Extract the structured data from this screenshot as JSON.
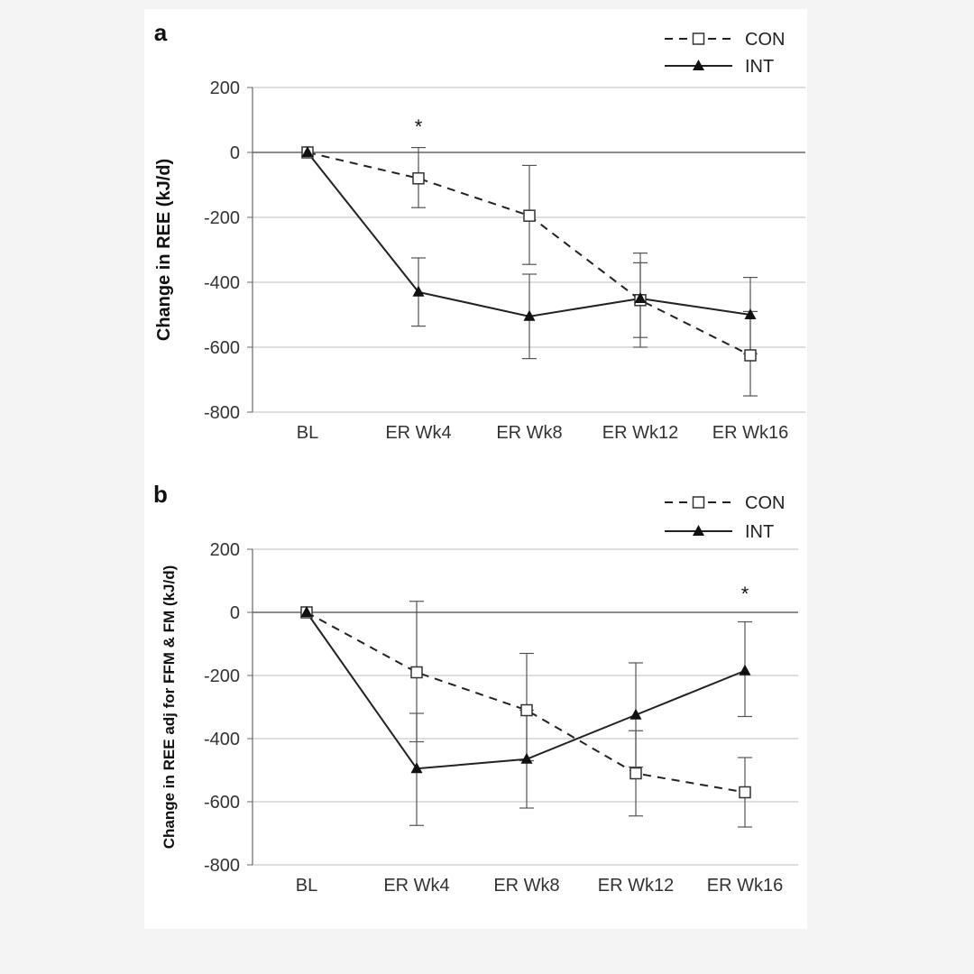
{
  "chart_data": [
    {
      "type": "line",
      "panel_label": "a",
      "ylabel": "Change in REE (kJ/d)",
      "categories": [
        "BL",
        "ER Wk4",
        "ER Wk8",
        "ER Wk12",
        "ER Wk16"
      ],
      "ylim": [
        -800,
        200
      ],
      "yticks": [
        200,
        0,
        -200,
        -400,
        -600,
        -800
      ],
      "grid": true,
      "legend_position": "top-right",
      "series": [
        {
          "name": "CON",
          "style": "dashed",
          "marker": "open-square",
          "values": [
            0,
            -80,
            -195,
            -455,
            -625
          ],
          "error_low": [
            0,
            -170,
            -345,
            -570,
            -750
          ],
          "error_high": [
            0,
            15,
            -40,
            -340,
            -490
          ]
        },
        {
          "name": "INT",
          "style": "solid",
          "marker": "filled-triangle",
          "values": [
            0,
            -430,
            -505,
            -450,
            -500
          ],
          "error_low": [
            0,
            -535,
            -635,
            -600,
            -620
          ],
          "error_high": [
            0,
            -325,
            -375,
            -310,
            -385
          ]
        }
      ],
      "annotations": [
        {
          "text": "*",
          "category": "ER Wk4",
          "y": 80
        }
      ]
    },
    {
      "type": "line",
      "panel_label": "b",
      "ylabel": "Change in REE adj for FFM & FM (kJ/d)",
      "categories": [
        "BL",
        "ER Wk4",
        "ER Wk8",
        "ER Wk12",
        "ER Wk16"
      ],
      "ylim": [
        -800,
        200
      ],
      "yticks": [
        200,
        0,
        -200,
        -400,
        -600,
        -800
      ],
      "grid": true,
      "legend_position": "top-right",
      "series": [
        {
          "name": "CON",
          "style": "dashed",
          "marker": "open-square",
          "values": [
            0,
            -190,
            -310,
            -510,
            -570
          ],
          "error_low": [
            0,
            -410,
            -470,
            -645,
            -680
          ],
          "error_high": [
            0,
            35,
            -130,
            -375,
            -460
          ]
        },
        {
          "name": "INT",
          "style": "solid",
          "marker": "filled-triangle",
          "values": [
            0,
            -495,
            -465,
            -325,
            -185
          ],
          "error_low": [
            0,
            -675,
            -620,
            -490,
            -330
          ],
          "error_high": [
            0,
            -320,
            -310,
            -160,
            -30
          ]
        }
      ],
      "annotations": [
        {
          "text": "*",
          "category": "ER Wk16",
          "y": 60
        }
      ]
    }
  ]
}
